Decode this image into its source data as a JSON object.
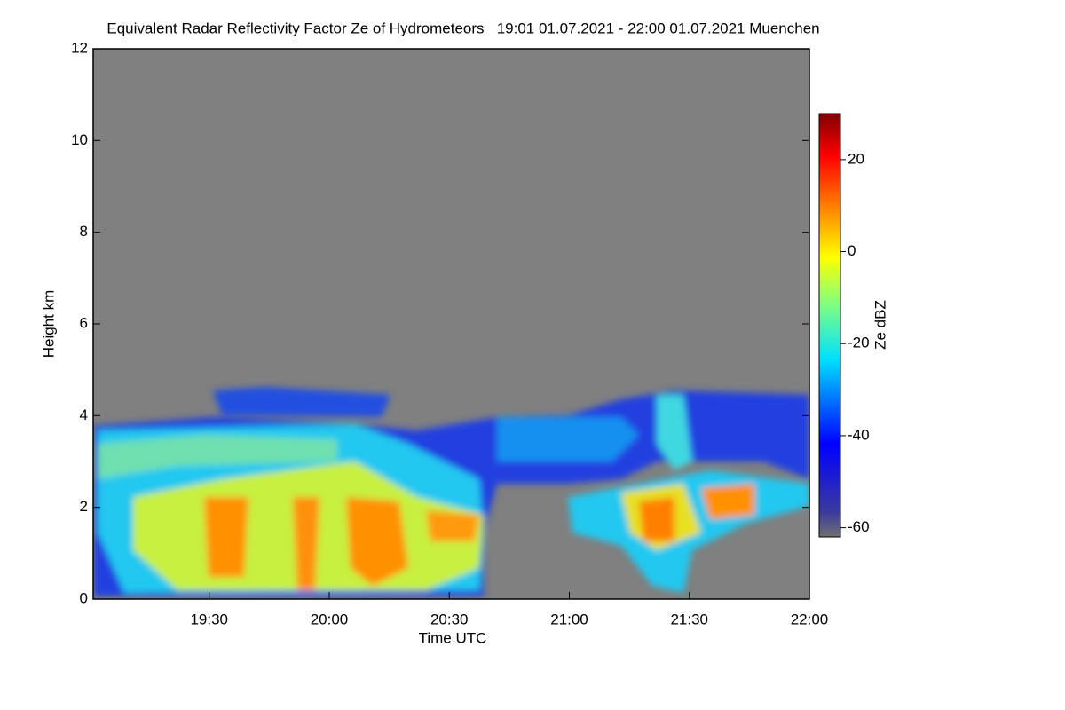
{
  "chart_data": {
    "type": "heatmap",
    "title": "Equivalent Radar Reflectivity Factor Ze of Hydrometeors   19:01 01.07.2021 - 22:00 01.07.2021 Muenchen",
    "xlabel": "Time UTC",
    "ylabel": "Height km",
    "colorbar_label": "Ze dBZ",
    "xlim": [
      1141,
      1320
    ],
    "xticks": [
      {
        "value": 1170,
        "label": "19:30"
      },
      {
        "value": 1200,
        "label": "20:00"
      },
      {
        "value": 1230,
        "label": "20:30"
      },
      {
        "value": 1260,
        "label": "21:00"
      },
      {
        "value": 1290,
        "label": "21:30"
      },
      {
        "value": 1320,
        "label": "22:00"
      }
    ],
    "ylim": [
      0,
      12
    ],
    "yticks": [
      0,
      2,
      4,
      6,
      8,
      10,
      12
    ],
    "clim": [
      -62,
      30
    ],
    "cticks": [
      -60,
      -40,
      -20,
      0,
      20
    ],
    "background": "#808080"
  }
}
